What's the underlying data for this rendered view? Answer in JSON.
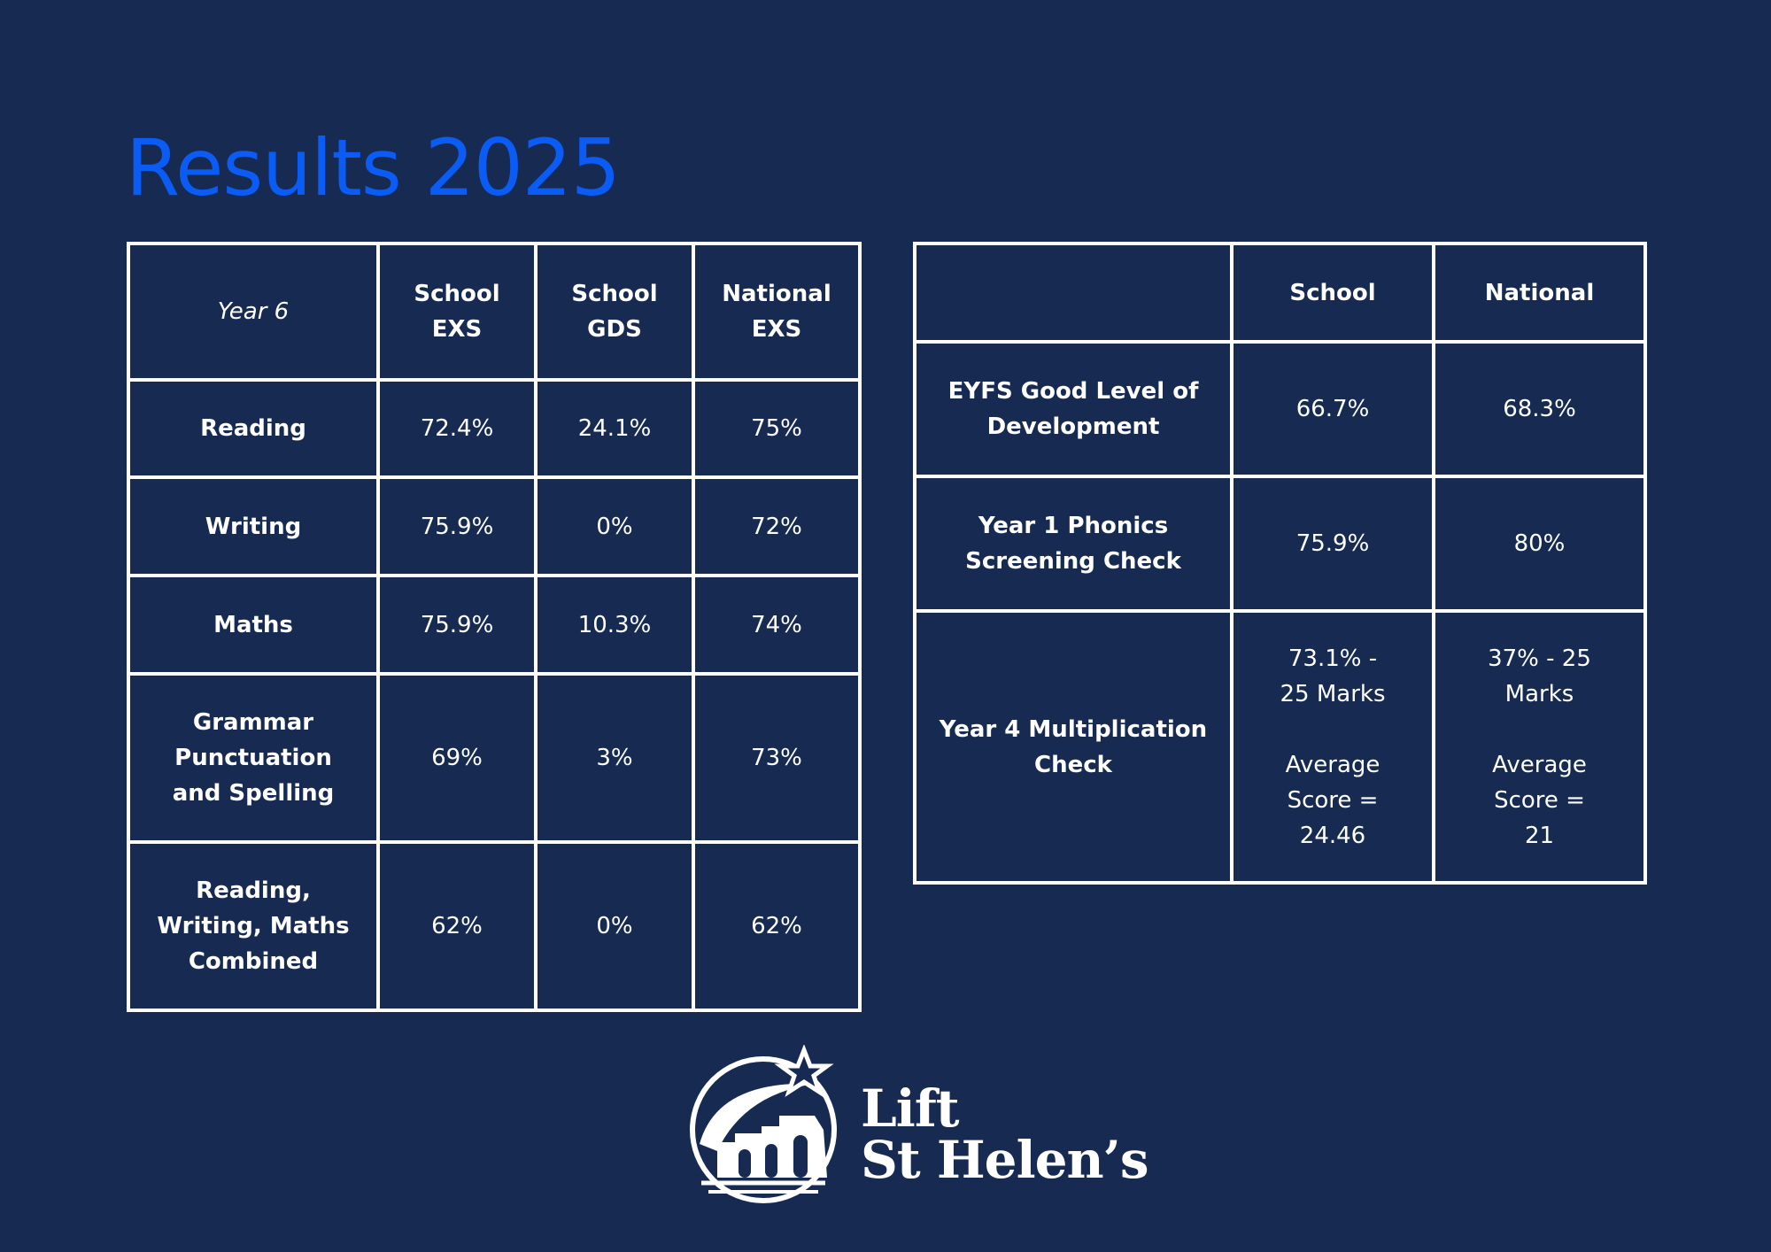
{
  "title": "Results 2025",
  "table1": {
    "header": [
      "Year 6",
      "School EXS",
      "School GDS",
      "National EXS"
    ],
    "rows": [
      [
        "Reading",
        "72.4%",
        "24.1%",
        "75%"
      ],
      [
        "Writing",
        "75.9%",
        "0%",
        "72%"
      ],
      [
        "Maths",
        "75.9%",
        "10.3%",
        "74%"
      ],
      [
        "Grammar Punctuation and Spelling",
        "69%",
        "3%",
        "73%"
      ],
      [
        "Reading, Writing, Maths Combined",
        "62%",
        "0%",
        "62%"
      ]
    ]
  },
  "table2": {
    "header": [
      "School",
      "National"
    ],
    "rows": [
      [
        "EYFS Good Level of Development",
        "66.7%",
        "68.3%"
      ],
      [
        "Year 1 Phonics Screening Check",
        "75.9%",
        "80%"
      ],
      [
        "Year 4 Multiplication Check",
        "73.1% - 25 Marks\n\nAverage Score = 24.46",
        "37% - 25 Marks\n\nAverage Score = 21"
      ]
    ]
  },
  "logo": {
    "line1": "Lift",
    "line2": "St Helen’s"
  }
}
